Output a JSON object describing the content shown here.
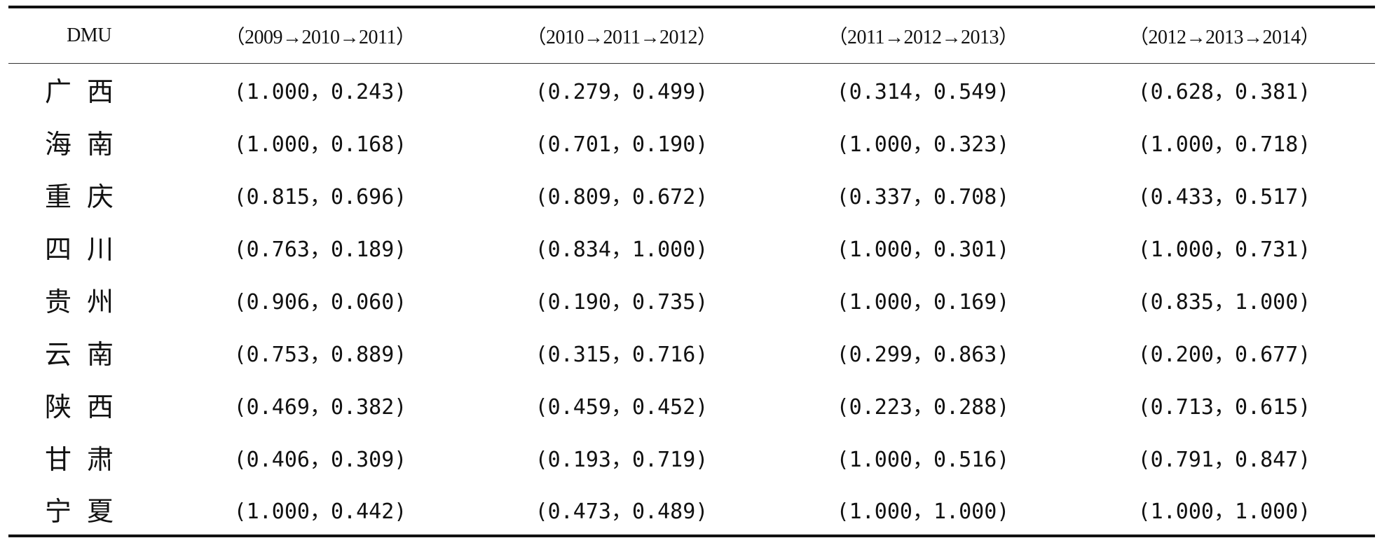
{
  "table": {
    "headers": [
      "DMU",
      "（2009→2010→2011）",
      "（2010→2011→2012）",
      "（2011→2012→2013）",
      "（2012→2013→2014）"
    ],
    "rows": [
      {
        "dmu": "广西",
        "values": [
          "(1.000，0.243)",
          "(0.279，0.499)",
          "(0.314，0.549)",
          "(0.628，0.381)"
        ]
      },
      {
        "dmu": "海南",
        "values": [
          "(1.000，0.168)",
          "(0.701，0.190)",
          "(1.000，0.323)",
          "(1.000，0.718)"
        ]
      },
      {
        "dmu": "重庆",
        "values": [
          "(0.815，0.696)",
          "(0.809，0.672)",
          "(0.337，0.708)",
          "(0.433，0.517)"
        ]
      },
      {
        "dmu": "四川",
        "values": [
          "(0.763，0.189)",
          "(0.834，1.000)",
          "(1.000，0.301)",
          "(1.000，0.731)"
        ]
      },
      {
        "dmu": "贵州",
        "values": [
          "(0.906，0.060)",
          "(0.190，0.735)",
          "(1.000，0.169)",
          "(0.835，1.000)"
        ]
      },
      {
        "dmu": "云南",
        "values": [
          "(0.753，0.889)",
          "(0.315，0.716)",
          "(0.299，0.863)",
          "(0.200，0.677)"
        ]
      },
      {
        "dmu": "陕西",
        "values": [
          "(0.469，0.382)",
          "(0.459，0.452)",
          "(0.223，0.288)",
          "(0.713，0.615)"
        ]
      },
      {
        "dmu": "甘肃",
        "values": [
          "(0.406，0.309)",
          "(0.193，0.719)",
          "(1.000，0.516)",
          "(0.791，0.847)"
        ]
      },
      {
        "dmu": "宁夏",
        "values": [
          "(1.000，0.442)",
          "(0.473，0.489)",
          "(1.000，1.000)",
          "(1.000，1.000)"
        ]
      }
    ]
  }
}
